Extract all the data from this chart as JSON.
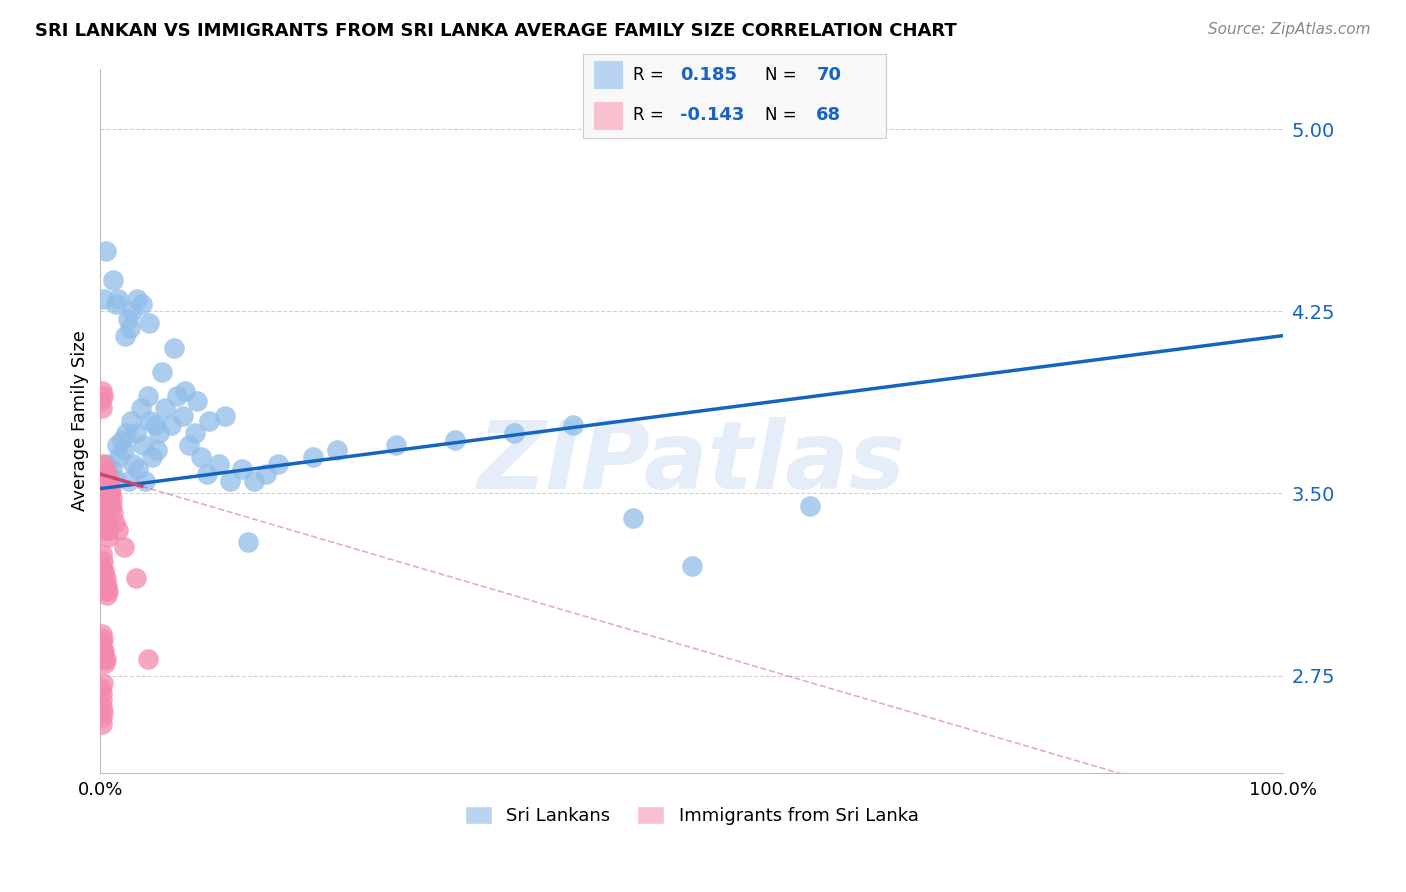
{
  "title": "SRI LANKAN VS IMMIGRANTS FROM SRI LANKA AVERAGE FAMILY SIZE CORRELATION CHART",
  "source": "Source: ZipAtlas.com",
  "ylabel": "Average Family Size",
  "yticks": [
    2.75,
    3.5,
    4.25,
    5.0
  ],
  "ytick_color": "#1565C0",
  "watermark": "ZIPatlas",
  "blue_color": "#90bde8",
  "blue_line_color": "#1565C0",
  "pink_color": "#f48aab",
  "pink_line_color": "#c9476e",
  "legend_blue_fill": "#b8d4f0",
  "legend_pink_fill": "#f9c0d0",
  "grid_color": "#cccccc",
  "blue_scatter": [
    [
      0.4,
      3.58
    ],
    [
      0.6,
      3.62
    ],
    [
      0.8,
      3.55
    ],
    [
      1.0,
      3.6
    ],
    [
      1.2,
      3.56
    ],
    [
      1.4,
      3.7
    ],
    [
      1.6,
      3.65
    ],
    [
      1.8,
      3.72
    ],
    [
      2.0,
      3.68
    ],
    [
      2.2,
      3.75
    ],
    [
      2.4,
      3.55
    ],
    [
      2.6,
      3.8
    ],
    [
      2.8,
      3.62
    ],
    [
      3.0,
      3.75
    ],
    [
      3.2,
      3.6
    ],
    [
      3.4,
      3.85
    ],
    [
      3.6,
      3.7
    ],
    [
      3.8,
      3.55
    ],
    [
      4.0,
      3.9
    ],
    [
      4.2,
      3.8
    ],
    [
      4.4,
      3.65
    ],
    [
      4.6,
      3.78
    ],
    [
      4.8,
      3.68
    ],
    [
      5.0,
      3.75
    ],
    [
      5.5,
      3.85
    ],
    [
      6.0,
      3.78
    ],
    [
      6.5,
      3.9
    ],
    [
      7.0,
      3.82
    ],
    [
      7.5,
      3.7
    ],
    [
      8.0,
      3.75
    ],
    [
      8.5,
      3.65
    ],
    [
      9.0,
      3.58
    ],
    [
      10.0,
      3.62
    ],
    [
      11.0,
      3.55
    ],
    [
      12.0,
      3.6
    ],
    [
      13.0,
      3.55
    ],
    [
      14.0,
      3.58
    ],
    [
      15.0,
      3.62
    ],
    [
      18.0,
      3.65
    ],
    [
      20.0,
      3.68
    ],
    [
      25.0,
      3.7
    ],
    [
      30.0,
      3.72
    ],
    [
      35.0,
      3.75
    ],
    [
      40.0,
      3.78
    ],
    [
      45.0,
      3.4
    ],
    [
      0.3,
      4.3
    ],
    [
      0.5,
      4.5
    ],
    [
      1.1,
      4.38
    ],
    [
      1.3,
      4.28
    ],
    [
      1.5,
      4.3
    ],
    [
      2.1,
      4.15
    ],
    [
      2.3,
      4.22
    ],
    [
      2.5,
      4.18
    ],
    [
      2.7,
      4.25
    ],
    [
      3.1,
      4.3
    ],
    [
      3.5,
      4.28
    ],
    [
      4.1,
      4.2
    ],
    [
      5.2,
      4.0
    ],
    [
      6.2,
      4.1
    ],
    [
      7.2,
      3.92
    ],
    [
      8.2,
      3.88
    ],
    [
      9.2,
      3.8
    ],
    [
      10.5,
      3.82
    ],
    [
      12.5,
      3.3
    ],
    [
      60.0,
      3.45
    ],
    [
      50.0,
      3.2
    ]
  ],
  "pink_scatter": [
    [
      0.15,
      3.55
    ],
    [
      0.2,
      3.62
    ],
    [
      0.25,
      3.58
    ],
    [
      0.3,
      3.48
    ],
    [
      0.35,
      3.52
    ],
    [
      0.4,
      3.6
    ],
    [
      0.45,
      3.55
    ],
    [
      0.5,
      3.5
    ],
    [
      0.55,
      3.45
    ],
    [
      0.6,
      3.58
    ],
    [
      0.65,
      3.52
    ],
    [
      0.7,
      3.48
    ],
    [
      0.75,
      3.55
    ],
    [
      0.8,
      3.5
    ],
    [
      0.85,
      3.45
    ],
    [
      0.9,
      3.52
    ],
    [
      0.95,
      3.48
    ],
    [
      1.0,
      3.45
    ],
    [
      1.1,
      3.42
    ],
    [
      1.2,
      3.38
    ],
    [
      0.12,
      3.4
    ],
    [
      0.18,
      3.42
    ],
    [
      0.22,
      3.38
    ],
    [
      0.28,
      3.45
    ],
    [
      0.32,
      3.4
    ],
    [
      0.38,
      3.35
    ],
    [
      0.42,
      3.42
    ],
    [
      0.48,
      3.38
    ],
    [
      0.52,
      3.35
    ],
    [
      0.58,
      3.38
    ],
    [
      0.62,
      3.32
    ],
    [
      0.68,
      3.35
    ],
    [
      0.1,
      3.25
    ],
    [
      0.15,
      3.2
    ],
    [
      0.2,
      3.18
    ],
    [
      0.25,
      3.22
    ],
    [
      0.3,
      3.15
    ],
    [
      0.35,
      3.18
    ],
    [
      0.4,
      3.12
    ],
    [
      0.45,
      3.15
    ],
    [
      0.5,
      3.1
    ],
    [
      0.55,
      3.12
    ],
    [
      0.6,
      3.08
    ],
    [
      0.65,
      3.1
    ],
    [
      0.1,
      2.92
    ],
    [
      0.15,
      2.88
    ],
    [
      0.2,
      2.85
    ],
    [
      0.25,
      2.9
    ],
    [
      0.3,
      2.82
    ],
    [
      0.35,
      2.85
    ],
    [
      0.4,
      2.8
    ],
    [
      0.45,
      2.82
    ],
    [
      0.08,
      2.7
    ],
    [
      0.12,
      2.65
    ],
    [
      0.18,
      2.68
    ],
    [
      0.22,
      2.72
    ],
    [
      0.1,
      2.62
    ],
    [
      0.14,
      2.58
    ],
    [
      0.18,
      2.55
    ],
    [
      0.22,
      2.6
    ],
    [
      0.08,
      3.88
    ],
    [
      0.12,
      3.92
    ],
    [
      0.16,
      3.85
    ],
    [
      0.2,
      3.9
    ],
    [
      1.5,
      3.35
    ],
    [
      2.0,
      3.28
    ],
    [
      3.0,
      3.15
    ],
    [
      4.0,
      2.82
    ]
  ],
  "blue_trendline": {
    "x_start": 0,
    "x_end": 100,
    "y_start": 3.52,
    "y_end": 4.15
  },
  "pink_solid_end_x": 3.5,
  "pink_trendline": {
    "x_start": 0,
    "x_end": 100,
    "y_start": 3.58,
    "y_end": 2.15
  },
  "xmin": 0,
  "xmax": 100,
  "ymin": 2.35,
  "ymax": 5.25
}
